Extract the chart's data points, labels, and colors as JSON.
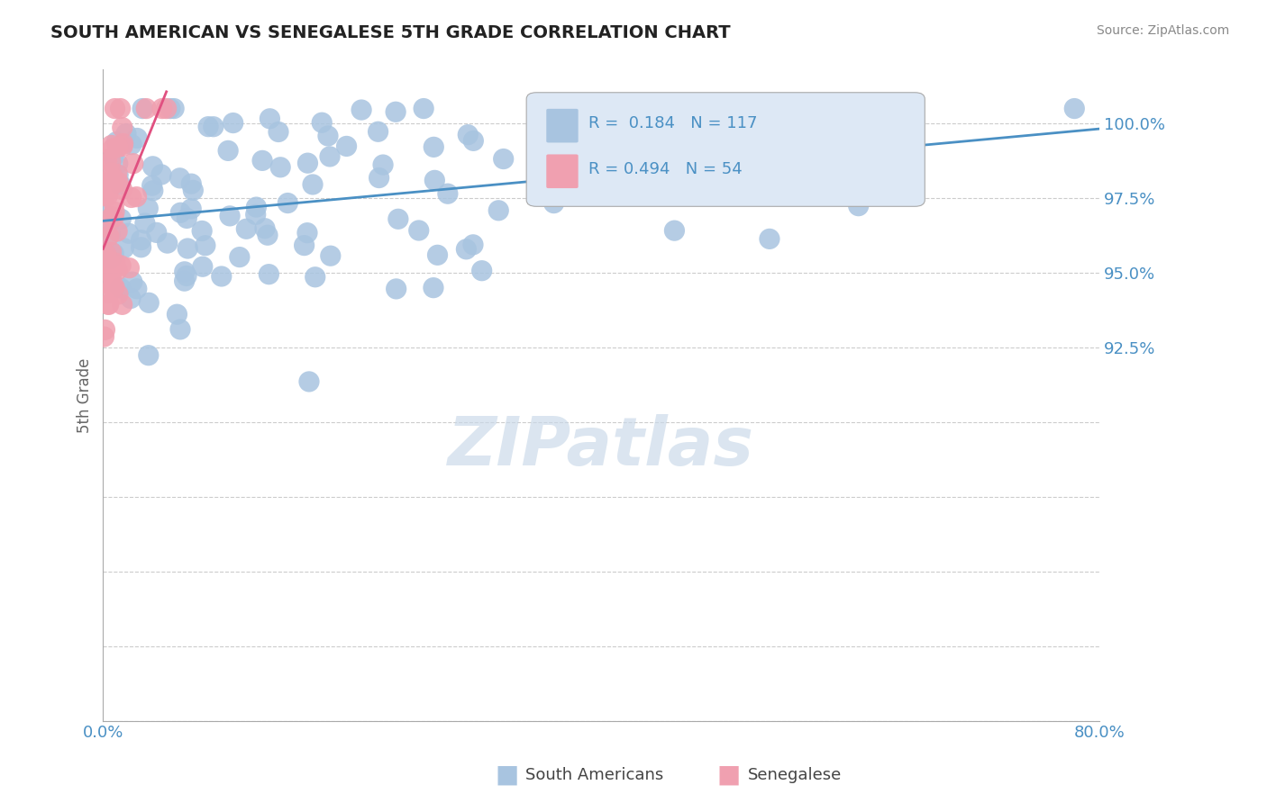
{
  "title": "SOUTH AMERICAN VS SENEGALESE 5TH GRADE CORRELATION CHART",
  "source": "Source: ZipAtlas.com",
  "ylabel_label": "5th Grade",
  "x_min": 0.0,
  "x_max": 80.0,
  "y_min": 80.0,
  "y_max": 101.8,
  "blue_R": 0.184,
  "blue_N": 117,
  "pink_R": 0.494,
  "pink_N": 54,
  "blue_color": "#a8c4e0",
  "pink_color": "#f0a0b0",
  "blue_line_color": "#4a90c4",
  "pink_line_color": "#e05080",
  "legend_box_color": "#dde8f5",
  "title_color": "#222222",
  "axis_label_color": "#666666",
  "tick_color": "#4a90c4",
  "grid_color": "#cccccc",
  "watermark_color": "#c8d8e8",
  "ytick_vals": [
    100.0,
    97.5,
    95.0,
    92.5
  ],
  "xtick_vals": [
    0.0,
    80.0
  ]
}
